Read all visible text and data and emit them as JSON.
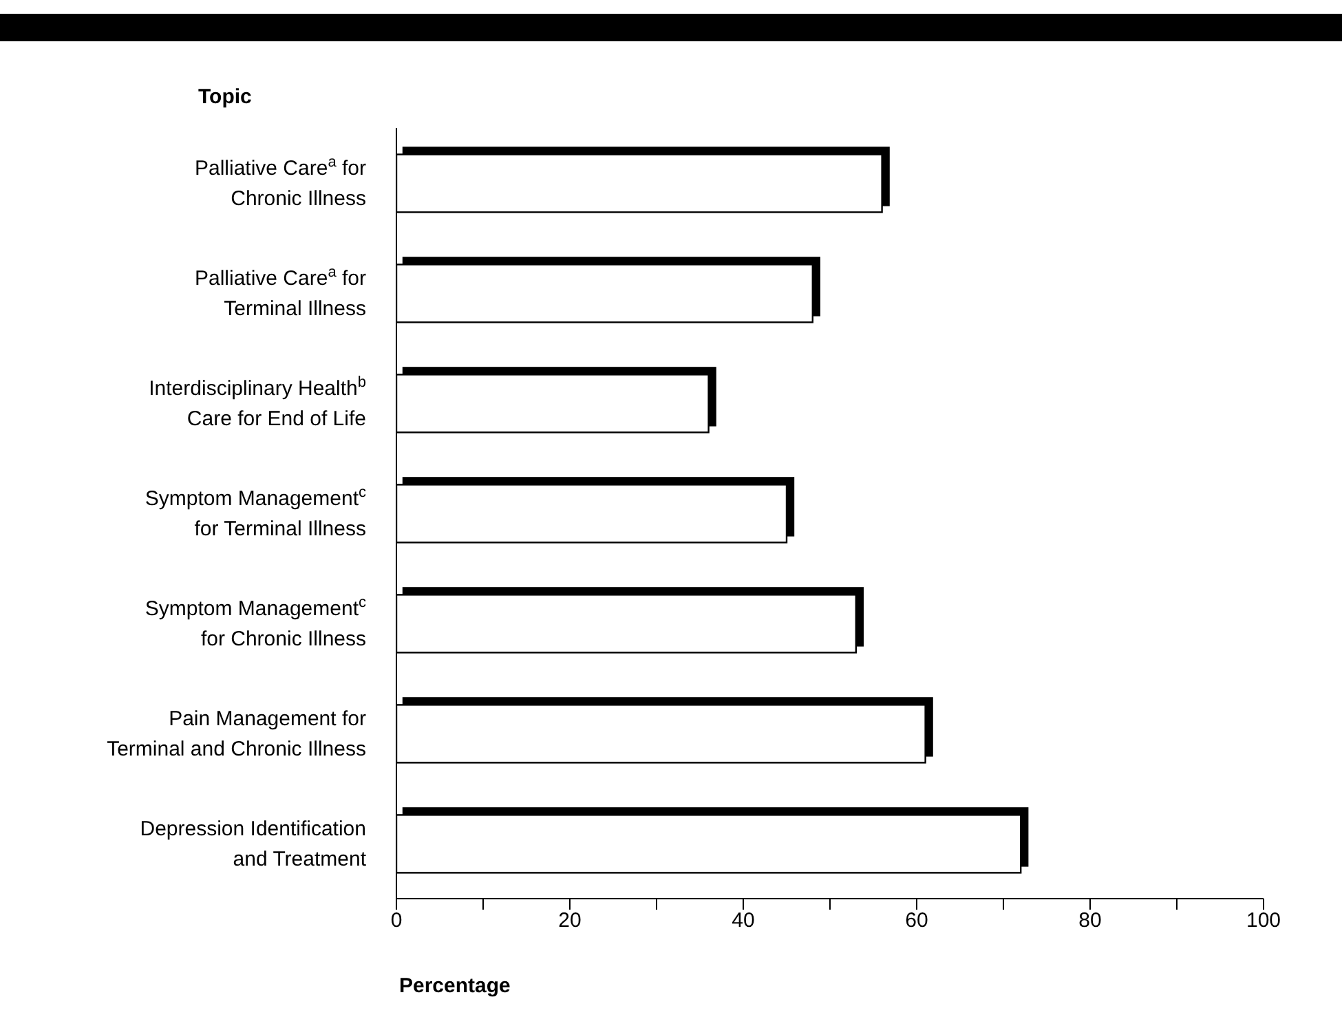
{
  "chart_data": {
    "type": "bar",
    "orientation": "horizontal",
    "xlabel": "Percentage",
    "ylabel": "Topic",
    "categories": [
      "Palliative Care$^{a}$ for\nChronic Illness",
      "Palliative Care$^{a}$ for\nTerminal Illness",
      "Interdisciplinary Health$^{b}$\nCare for End of Life",
      "Symptom Management$^{c}$\nfor Terminal Illness",
      "Symptom Management$^{c}$\nfor Chronic Illness",
      "Pain Management for\nTerminal and Chronic Illness",
      "Depression Identification\nand Treatment"
    ],
    "values": [
      56,
      48,
      36,
      45,
      53,
      61,
      72
    ],
    "color": "#ffffff",
    "xlim": [
      0,
      100
    ],
    "xticks": [
      0,
      {
        "value": 10,
        "label": null
      },
      20,
      {
        "value": 30,
        "label": null
      },
      40,
      {
        "value": 50,
        "label": null
      },
      60,
      {
        "value": 70,
        "label": null
      },
      80,
      {
        "value": 90,
        "label": null
      },
      100
    ],
    "grid": false,
    "legend": false
  }
}
